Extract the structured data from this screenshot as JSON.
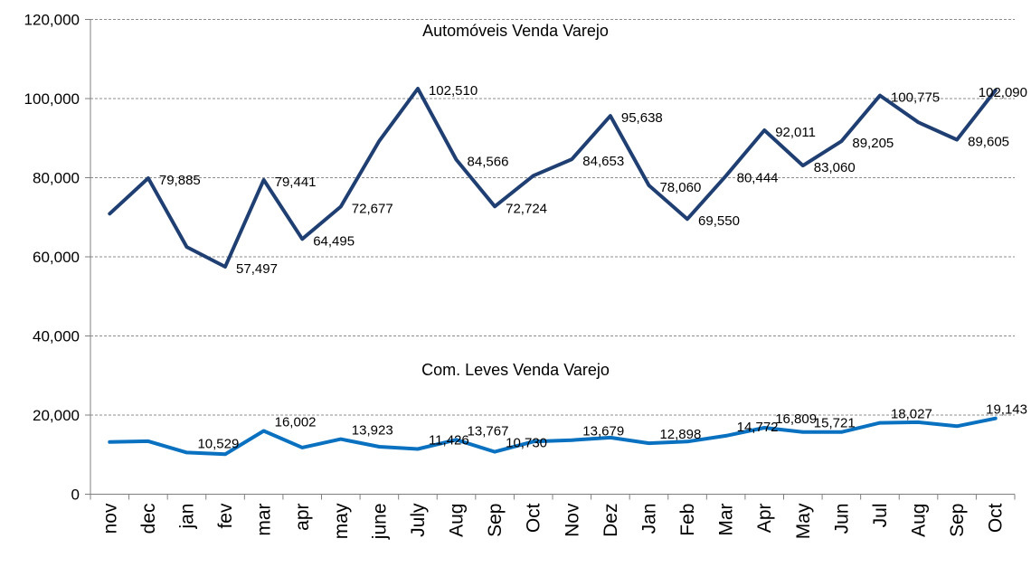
{
  "chart_data": {
    "type": "line",
    "categories": [
      "nov",
      "dec",
      "jan",
      "fev",
      "mar",
      "apr",
      "may",
      "june",
      "July",
      "Aug",
      "Sep",
      "Oct",
      "Nov",
      "Dez",
      "Jan",
      "Feb",
      "Mar",
      "Apr",
      "May",
      "Jun",
      "Jul",
      "Aug",
      "Sep",
      "Oct"
    ],
    "ylim": [
      0,
      120000
    ],
    "yticks": [
      "0",
      "20,000",
      "40,000",
      "60,000",
      "80,000",
      "100,000",
      "120,000"
    ],
    "grid": "horizontal-dashed",
    "series": [
      {
        "name": "Automóveis Venda Varejo",
        "color": "#1F3F73",
        "values": [
          70900,
          79885,
          62500,
          57497,
          79441,
          64495,
          72677,
          89300,
          102510,
          84566,
          72724,
          80500,
          84653,
          95638,
          78060,
          69550,
          80444,
          92011,
          83060,
          89205,
          100775,
          94000,
          89605,
          102090
        ],
        "labels": [
          "",
          "79,885",
          "",
          "57,497",
          "79,441",
          "64,495",
          "72,677",
          "",
          "102,510",
          "84,566",
          "72,724",
          "",
          "84,653",
          "95,638",
          "78,060",
          "69,550",
          "80,444",
          "92,011",
          "83,060",
          "89,205",
          "100,775",
          "",
          "89,605",
          "102,090"
        ]
      },
      {
        "name": "Com. Leves Venda Varejo",
        "color": "#0A71C0",
        "values": [
          13200,
          13400,
          10529,
          10100,
          16002,
          11800,
          13923,
          12000,
          11426,
          13767,
          10730,
          13300,
          13679,
          14300,
          12898,
          13300,
          14772,
          16809,
          15721,
          15700,
          18027,
          18200,
          17200,
          19143
        ],
        "labels": [
          "",
          "",
          "10,529",
          "",
          "16,002",
          "",
          "13,923",
          "",
          "11,426",
          "13,767",
          "10,730",
          "",
          "13,679",
          "",
          "12,898",
          "",
          "14,772",
          "16,809",
          "15,721",
          "",
          "18,027",
          "",
          "",
          "19,143"
        ]
      }
    ]
  }
}
